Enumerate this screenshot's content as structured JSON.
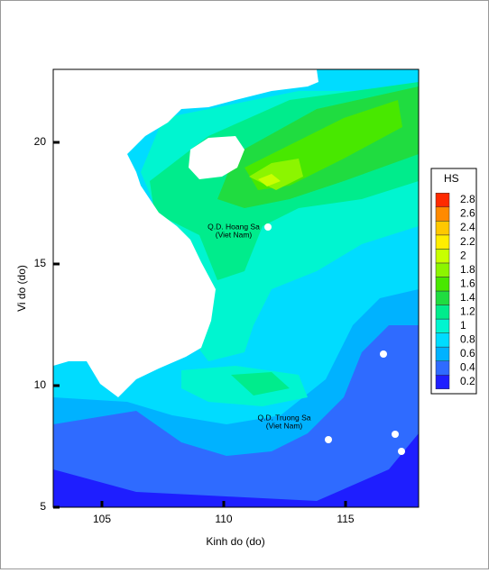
{
  "chart_data": {
    "type": "contour",
    "xlabel": "Kinh do (do)",
    "ylabel": "Vi do (do)",
    "xlim": [
      103,
      118
    ],
    "ylim": [
      5,
      23
    ],
    "xticks": [
      105,
      110,
      115
    ],
    "yticks": [
      5,
      10,
      15,
      20
    ],
    "annotations": [
      "Q.D. Hoang Sa",
      "(Viet Nam)",
      "Q.D. Truong Sa",
      "(Viet Nam)"
    ],
    "legend": {
      "title": "HS",
      "levels": [
        0.2,
        0.4,
        0.6,
        0.8,
        1,
        1.2,
        1.4,
        1.6,
        1.8,
        2,
        2.2,
        2.4,
        2.6,
        2.8
      ],
      "colors": [
        "#1e1eff",
        "#2f6bff",
        "#00b2ff",
        "#00dcff",
        "#00f5d0",
        "#00ec8c",
        "#20dc40",
        "#48e800",
        "#8cf500",
        "#c8ff00",
        "#ffee00",
        "#ffc800",
        "#ff8a00",
        "#ff2a00"
      ]
    }
  }
}
